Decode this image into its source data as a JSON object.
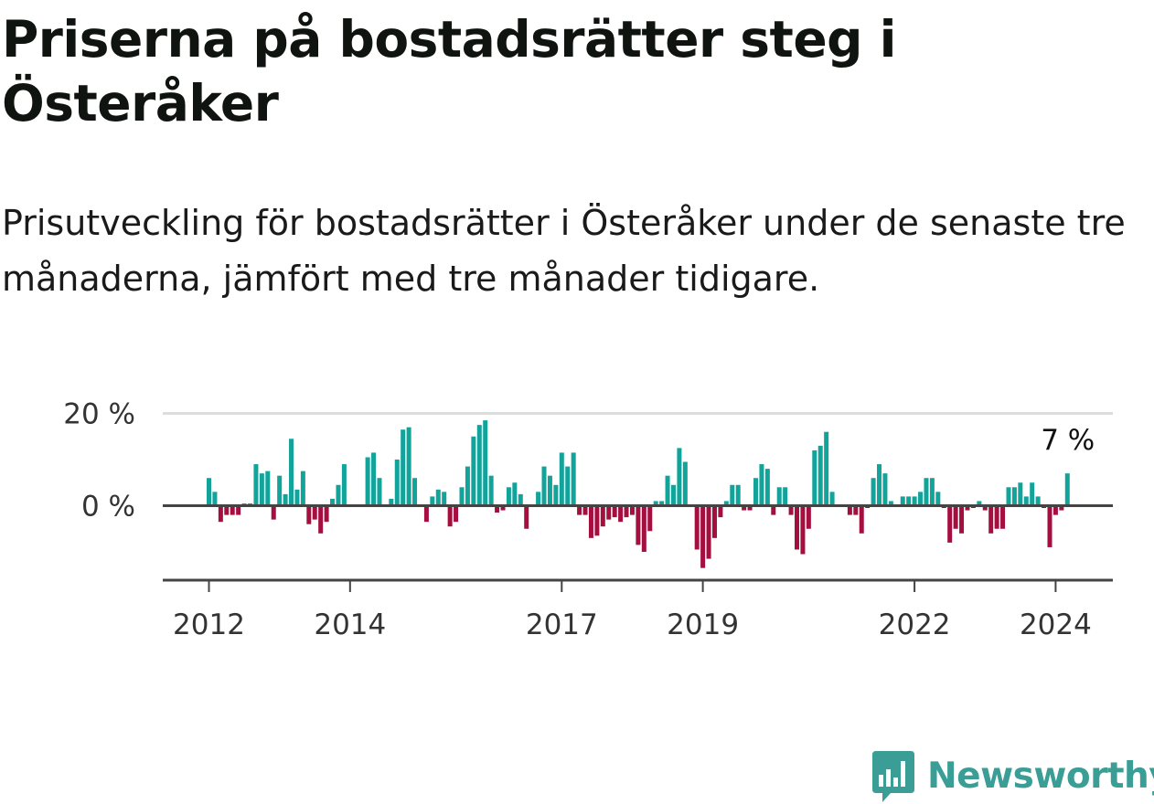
{
  "title": "Priserna på bostadsrätter steg i Österåker",
  "subtitle": "Prisutveckling för bostadsrätter i Österåker under de senaste tre månaderna, jämfört med tre månader tidigare.",
  "brand": {
    "name": "Newsworthy",
    "color": "#3a9e96",
    "icon": "bar-chart-speech-bubble-icon"
  },
  "colors": {
    "positive": "#12a39a",
    "negative": "#a50f40",
    "zero_line": "#444444",
    "grid": "#dddddd"
  },
  "chart_data": {
    "type": "bar",
    "xlabel": "",
    "ylabel": "",
    "ylim": [
      -14,
      20
    ],
    "y_ticks": [
      {
        "value": 20,
        "label": "20 %"
      },
      {
        "value": 0,
        "label": "0 %"
      }
    ],
    "x_ticks": [
      {
        "value": "2012-01",
        "label": "2012"
      },
      {
        "value": "2014-01",
        "label": "2014"
      },
      {
        "value": "2017-01",
        "label": "2017"
      },
      {
        "value": "2019-01",
        "label": "2019"
      },
      {
        "value": "2022-01",
        "label": "2022"
      },
      {
        "value": "2024-01",
        "label": "2024"
      }
    ],
    "grid": "horizontal",
    "annotation": {
      "label": "7 %",
      "month": "2024-03"
    },
    "series": [
      {
        "months": [
          "2012-01",
          "2012-02",
          "2012-03",
          "2012-04",
          "2012-05",
          "2012-06",
          "2012-07",
          "2012-08",
          "2012-09",
          "2012-10",
          "2012-11",
          "2012-12",
          "2013-01",
          "2013-02",
          "2013-03",
          "2013-04",
          "2013-05",
          "2013-06",
          "2013-07",
          "2013-08",
          "2013-09",
          "2013-10",
          "2013-11",
          "2013-12",
          "2014-01",
          "2014-02",
          "2014-03",
          "2014-04",
          "2014-05",
          "2014-06",
          "2014-07",
          "2014-08",
          "2014-09",
          "2014-10",
          "2014-11",
          "2014-12",
          "2015-01",
          "2015-02",
          "2015-03",
          "2015-04",
          "2015-05",
          "2015-06",
          "2015-07",
          "2015-08",
          "2015-09",
          "2015-10",
          "2015-11",
          "2015-12",
          "2016-01",
          "2016-02",
          "2016-03",
          "2016-04",
          "2016-05",
          "2016-06",
          "2016-07",
          "2016-08",
          "2016-09",
          "2016-10",
          "2016-11",
          "2016-12",
          "2017-01",
          "2017-02",
          "2017-03",
          "2017-04",
          "2017-05",
          "2017-06",
          "2017-07",
          "2017-08",
          "2017-09",
          "2017-10",
          "2017-11",
          "2017-12",
          "2018-01",
          "2018-02",
          "2018-03",
          "2018-04",
          "2018-05",
          "2018-06",
          "2018-07",
          "2018-08",
          "2018-09",
          "2018-10",
          "2018-11",
          "2018-12",
          "2019-01",
          "2019-02",
          "2019-03",
          "2019-04",
          "2019-05",
          "2019-06",
          "2019-07",
          "2019-08",
          "2019-09",
          "2019-10",
          "2019-11",
          "2019-12",
          "2020-01",
          "2020-02",
          "2020-03",
          "2020-04",
          "2020-05",
          "2020-06",
          "2020-07",
          "2020-08",
          "2020-09",
          "2020-10",
          "2020-11",
          "2020-12",
          "2021-01",
          "2021-02",
          "2021-03",
          "2021-04",
          "2021-05",
          "2021-06",
          "2021-07",
          "2021-08",
          "2021-09",
          "2021-10",
          "2021-11",
          "2021-12",
          "2022-01",
          "2022-02",
          "2022-03",
          "2022-04",
          "2022-05",
          "2022-06",
          "2022-07",
          "2022-08",
          "2022-09",
          "2022-10",
          "2022-11",
          "2022-12",
          "2023-01",
          "2023-02",
          "2023-03",
          "2023-04",
          "2023-05",
          "2023-06",
          "2023-07",
          "2023-08",
          "2023-09",
          "2023-10",
          "2023-11",
          "2023-12",
          "2024-01",
          "2024-02",
          "2024-03"
        ],
        "values": [
          6,
          3,
          -3.5,
          -2,
          -2,
          -2,
          0.5,
          0.5,
          9,
          7,
          7.5,
          -3,
          6.5,
          2.5,
          14.5,
          3.5,
          7.5,
          -4,
          -3,
          -6,
          -3.5,
          1.5,
          4.5,
          9,
          null,
          null,
          null,
          10.5,
          11.5,
          6,
          null,
          1.5,
          10,
          16.5,
          17,
          6,
          null,
          -3.5,
          2,
          3.5,
          3,
          -4.5,
          -3.5,
          4,
          8.5,
          15,
          17.5,
          18.5,
          6.5,
          -1.5,
          -1,
          4,
          5,
          2.5,
          -5,
          null,
          3,
          8.5,
          6.5,
          4.5,
          11.5,
          8.5,
          11.5,
          -2,
          -2,
          -7,
          -6.5,
          -4.5,
          -3,
          -2.5,
          -3.5,
          -2.5,
          -2,
          -8.5,
          -10,
          -5.5,
          1,
          1,
          6.5,
          4.5,
          12.5,
          9.5,
          null,
          -9.5,
          -13.5,
          -11.5,
          -7,
          -2.5,
          1,
          4.5,
          4.5,
          -1,
          -1,
          6,
          9,
          8,
          -2,
          4,
          4,
          -2,
          -9.5,
          -10.5,
          -5,
          12,
          13,
          16,
          3,
          null,
          null,
          -2,
          -2,
          -6,
          -0.5,
          6,
          9,
          7,
          1,
          null,
          2,
          2,
          2,
          3,
          6,
          6,
          3,
          -0.5,
          -8,
          -5,
          -6,
          -1,
          -0.5,
          1,
          -1,
          -6,
          -5,
          -5,
          4,
          4,
          5,
          2,
          5,
          2,
          -0.5,
          -9,
          -2,
          -1,
          7
        ]
      }
    ]
  }
}
